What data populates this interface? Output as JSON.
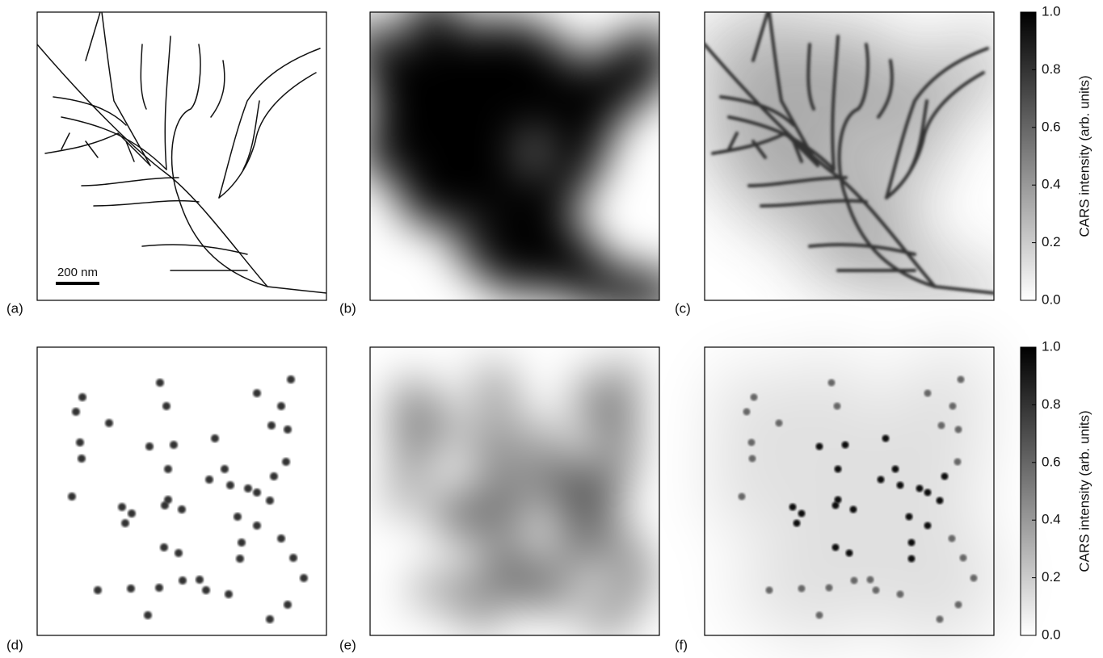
{
  "panels": [
    {
      "label": "(a)"
    },
    {
      "label": "(b)"
    },
    {
      "label": "(c)"
    },
    {
      "label": "(d)"
    },
    {
      "label": "(e)"
    },
    {
      "label": "(f)"
    }
  ],
  "scale_bar": {
    "label": "200 nm"
  },
  "colorbars": [
    {
      "label": "CARS intensity (arb. units)",
      "range": [
        0,
        1
      ],
      "ticks": [
        {
          "value": 0,
          "label": "0.0"
        },
        {
          "value": 0.2,
          "label": "0.2"
        },
        {
          "value": 0.4,
          "label": "0.4"
        },
        {
          "value": 0.6,
          "label": "0.6"
        },
        {
          "value": 0.8,
          "label": "0.8"
        },
        {
          "value": 1,
          "label": "1.0"
        }
      ]
    },
    {
      "label": "CARS intensity (arb. units)",
      "range": [
        0,
        1
      ],
      "ticks": [
        {
          "value": 0,
          "label": "0.0"
        },
        {
          "value": 0.2,
          "label": "0.2"
        },
        {
          "value": 0.4,
          "label": "0.4"
        },
        {
          "value": 0.6,
          "label": "0.6"
        },
        {
          "value": 0.8,
          "label": "0.8"
        },
        {
          "value": 1,
          "label": "1.0"
        }
      ]
    }
  ]
}
